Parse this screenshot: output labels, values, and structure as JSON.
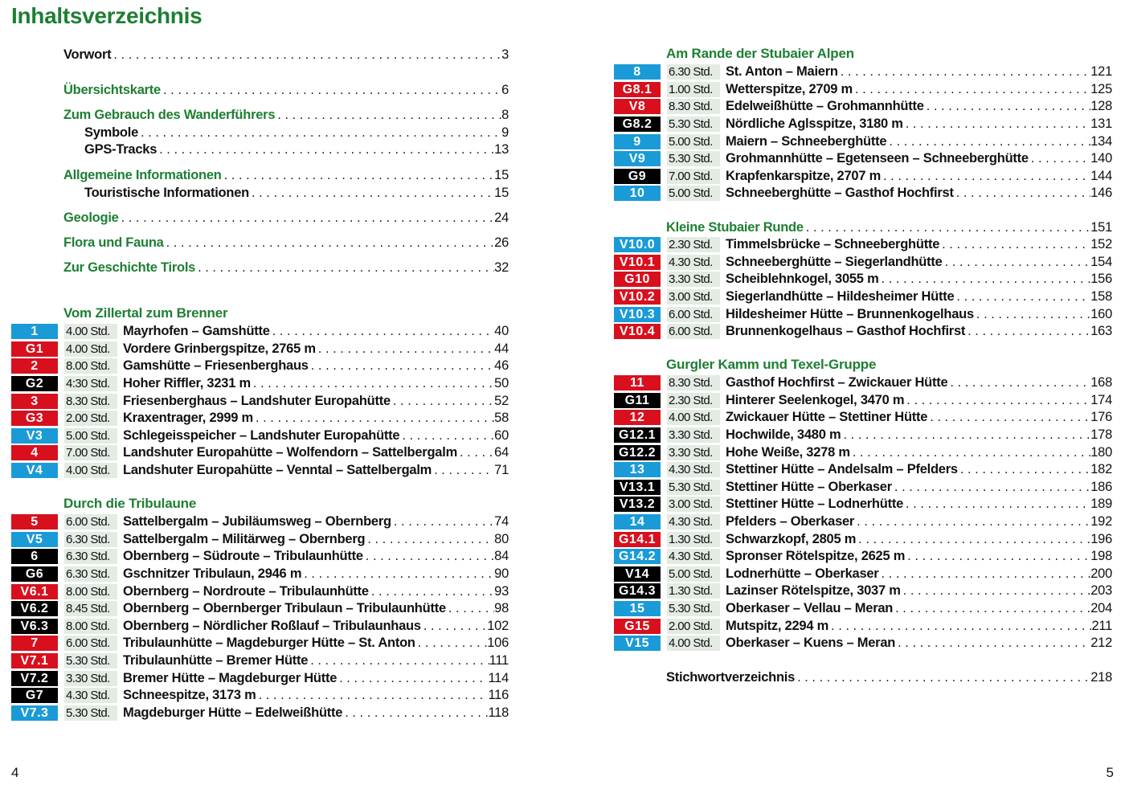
{
  "title": "Inhaltsverzeichnis",
  "colors": {
    "blue": "#1a9bd7",
    "red": "#d8101e",
    "black": "#000000",
    "green": "#1d7f33"
  },
  "front_matter": [
    {
      "label": "Vorwort",
      "page": "3",
      "style": "black",
      "indent": false
    },
    {
      "label": "Übersichtskarte",
      "page": "6",
      "style": "green",
      "indent": false
    },
    {
      "label": "Zum Gebrauch des Wanderführers",
      "page": "8",
      "style": "green",
      "indent": false
    },
    {
      "label": "Symbole",
      "page": "9",
      "style": "black",
      "indent": true
    },
    {
      "label": "GPS-Tracks",
      "page": "13",
      "style": "black",
      "indent": true
    },
    {
      "label": "Allgemeine Informationen",
      "page": "15",
      "style": "green",
      "indent": false
    },
    {
      "label": "Touristische Informationen",
      "page": "15",
      "style": "black",
      "indent": true
    },
    {
      "label": "Geologie",
      "page": "24",
      "style": "green",
      "indent": false
    },
    {
      "label": "Flora und Fauna",
      "page": "26",
      "style": "green",
      "indent": false
    },
    {
      "label": "Zur Geschichte Tirols",
      "page": "32",
      "style": "green",
      "indent": false
    }
  ],
  "sections": [
    {
      "heading": "Vom Zillertal zum Brenner",
      "page": "",
      "routes": [
        {
          "badge": "1",
          "color": "blue",
          "time": "4.00 Std.",
          "name": "Mayrhofen – Gamshütte",
          "page": "40"
        },
        {
          "badge": "G1",
          "color": "red",
          "time": "4.00 Std.",
          "name": "Vordere Grinbergspitze, 2765 m",
          "page": "44"
        },
        {
          "badge": "2",
          "color": "red",
          "time": "8.00 Std.",
          "name": "Gamshütte – Friesenberghaus",
          "page": "46"
        },
        {
          "badge": "G2",
          "color": "black",
          "time": "4:30 Std.",
          "name": "Hoher Riffler, 3231 m",
          "page": "50"
        },
        {
          "badge": "3",
          "color": "red",
          "time": "8.30 Std.",
          "name": "Friesenberghaus – Landshuter Europahütte",
          "page": "52"
        },
        {
          "badge": "G3",
          "color": "red",
          "time": "2.00 Std.",
          "name": "Kraxentrager, 2999 m",
          "page": "58"
        },
        {
          "badge": "V3",
          "color": "blue",
          "time": "5.00 Std.",
          "name": "Schlegeisspeicher – Landshuter Europahütte",
          "page": "60"
        },
        {
          "badge": "4",
          "color": "red",
          "time": "7.00 Std.",
          "name": "Landshuter Europahütte – Wolfendorn – Sattelbergalm",
          "page": "64"
        },
        {
          "badge": "V4",
          "color": "blue",
          "time": "4.00 Std.",
          "name": "Landshuter Europahütte – Venntal – Sattelbergalm",
          "page": "71"
        }
      ]
    },
    {
      "heading": "Durch die Tribulaune",
      "page": "",
      "routes": [
        {
          "badge": "5",
          "color": "red",
          "time": "6.00 Std.",
          "name": "Sattelbergalm – Jubiläumsweg – Obernberg",
          "page": "74"
        },
        {
          "badge": "V5",
          "color": "blue",
          "time": "6.30 Std.",
          "name": "Sattelbergalm – Militärweg – Obernberg",
          "page": "80"
        },
        {
          "badge": "6",
          "color": "black",
          "time": "6.30 Std.",
          "name": "Obernberg – Südroute – Tribulaunhütte",
          "page": "84"
        },
        {
          "badge": "G6",
          "color": "black",
          "time": "6.30 Std.",
          "name": "Gschnitzer Tribulaun, 2946 m",
          "page": "90"
        },
        {
          "badge": "V6.1",
          "color": "red",
          "time": "8.00 Std.",
          "name": "Obernberg – Nordroute – Tribulaunhütte",
          "page": "93"
        },
        {
          "badge": "V6.2",
          "color": "black",
          "time": "8.45 Std.",
          "name": "Obernberg – Obernberger Tribulaun – Tribulaunhütte",
          "page": "98"
        },
        {
          "badge": "V6.3",
          "color": "black",
          "time": "8.00 Std.",
          "name": "Obernberg – Nördlicher Roßlauf – Tribulaunhaus",
          "page": "102"
        },
        {
          "badge": "7",
          "color": "red",
          "time": "6.00 Std.",
          "name": "Tribulaunhütte – Magdeburger Hütte – St. Anton",
          "page": "106"
        },
        {
          "badge": "V7.1",
          "color": "red",
          "time": "5.30 Std.",
          "name": "Tribulaunhütte – Bremer Hütte",
          "page": "111"
        },
        {
          "badge": "V7.2",
          "color": "black",
          "time": "3.30 Std.",
          "name": "Bremer Hütte – Magdeburger Hütte",
          "page": "114"
        },
        {
          "badge": "G7",
          "color": "black",
          "time": "4.30 Std.",
          "name": "Schneespitze, 3173 m",
          "page": "116"
        },
        {
          "badge": "V7.3",
          "color": "blue",
          "time": "5.30 Std.",
          "name": "Magdeburger Hütte – Edelweißhütte",
          "page": "118"
        }
      ]
    },
    {
      "heading": "Am Rande der Stubaier Alpen",
      "page": "",
      "routes": [
        {
          "badge": "8",
          "color": "blue",
          "time": "6.30 Std.",
          "name": "St. Anton – Maiern",
          "page": "121"
        },
        {
          "badge": "G8.1",
          "color": "red",
          "time": "1.00 Std.",
          "name": "Wetterspitze, 2709 m",
          "page": "125"
        },
        {
          "badge": "V8",
          "color": "red",
          "time": "8.30 Std.",
          "name": "Edelweißhütte – Grohmannhütte",
          "page": "128"
        },
        {
          "badge": "G8.2",
          "color": "black",
          "time": "5.30 Std.",
          "name": "Nördliche Aglsspitze, 3180 m",
          "page": "131"
        },
        {
          "badge": "9",
          "color": "blue",
          "time": "5.00 Std.",
          "name": "Maiern – Schneeberghütte",
          "page": "134"
        },
        {
          "badge": "V9",
          "color": "blue",
          "time": "5.30 Std.",
          "name": "Grohmannhütte – Egetenseen – Schneeberghütte",
          "page": "140"
        },
        {
          "badge": "G9",
          "color": "black",
          "time": "7.00 Std.",
          "name": "Krapfenkarspitze, 2707 m",
          "page": "144"
        },
        {
          "badge": "10",
          "color": "blue",
          "time": "5.00 Std.",
          "name": "Schneeberghütte – Gasthof Hochfirst",
          "page": "146"
        }
      ]
    },
    {
      "heading": "Kleine Stubaier Runde",
      "page": "151",
      "routes": [
        {
          "badge": "V10.0",
          "color": "blue",
          "time": "2.30 Std.",
          "name": "Timmelsbrücke – Schneeberghütte",
          "page": "152"
        },
        {
          "badge": "V10.1",
          "color": "red",
          "time": "4.30 Std.",
          "name": "Schneeberghütte – Siegerlandhütte",
          "page": "154"
        },
        {
          "badge": "G10",
          "color": "red",
          "time": "3.30 Std.",
          "name": "Scheiblehnkogel, 3055 m",
          "page": "156"
        },
        {
          "badge": "V10.2",
          "color": "red",
          "time": "3.00 Std.",
          "name": "Siegerlandhütte – Hildesheimer Hütte",
          "page": "158"
        },
        {
          "badge": "V10.3",
          "color": "blue",
          "time": "6.00 Std.",
          "name": "Hildesheimer Hütte – Brunnenkogelhaus",
          "page": "160"
        },
        {
          "badge": "V10.4",
          "color": "red",
          "time": "6.00 Std.",
          "name": "Brunnenkogelhaus – Gasthof Hochfirst",
          "page": "163"
        }
      ]
    },
    {
      "heading": "Gurgler Kamm und Texel-Gruppe",
      "page": "",
      "routes": [
        {
          "badge": "11",
          "color": "red",
          "time": "8.30 Std.",
          "name": "Gasthof Hochfirst – Zwickauer Hütte",
          "page": "168"
        },
        {
          "badge": "G11",
          "color": "black",
          "time": "2.30 Std.",
          "name": "Hinterer Seelenkogel, 3470 m",
          "page": "174"
        },
        {
          "badge": "12",
          "color": "red",
          "time": "4.00 Std.",
          "name": "Zwickauer Hütte – Stettiner Hütte",
          "page": "176"
        },
        {
          "badge": "G12.1",
          "color": "black",
          "time": "3.30 Std.",
          "name": "Hochwilde, 3480 m",
          "page": "178"
        },
        {
          "badge": "G12.2",
          "color": "black",
          "time": "3.30 Std.",
          "name": "Hohe Weiße, 3278 m",
          "page": "180"
        },
        {
          "badge": "13",
          "color": "blue",
          "time": "4.30 Std.",
          "name": "Stettiner Hütte – Andelsalm – Pfelders",
          "page": "182"
        },
        {
          "badge": "V13.1",
          "color": "black",
          "time": "5.30 Std.",
          "name": "Stettiner Hütte – Oberkaser",
          "page": "186"
        },
        {
          "badge": "V13.2",
          "color": "black",
          "time": "3.00 Std.",
          "name": "Stettiner Hütte – Lodnerhütte",
          "page": "189"
        },
        {
          "badge": "14",
          "color": "blue",
          "time": "4.30 Std.",
          "name": "Pfelders – Oberkaser",
          "page": "192"
        },
        {
          "badge": "G14.1",
          "color": "red",
          "time": "1.30 Std.",
          "name": "Schwarzkopf, 2805 m",
          "page": "196"
        },
        {
          "badge": "G14.2",
          "color": "blue",
          "time": "4.30 Std.",
          "name": "Spronser Rötelspitze, 2625 m",
          "page": "198"
        },
        {
          "badge": "V14",
          "color": "black",
          "time": "5.00 Std.",
          "name": "Lodnerhütte – Oberkaser",
          "page": "200"
        },
        {
          "badge": "G14.3",
          "color": "black",
          "time": "1.30 Std.",
          "name": "Lazinser Rötelspitze, 3037 m",
          "page": "203"
        },
        {
          "badge": "15",
          "color": "blue",
          "time": "5.30 Std.",
          "name": "Oberkaser – Vellau – Meran",
          "page": "204"
        },
        {
          "badge": "G15",
          "color": "red",
          "time": "2.00 Std.",
          "name": "Mutspitz, 2294 m",
          "page": "211"
        },
        {
          "badge": "V15",
          "color": "blue",
          "time": "4.00 Std.",
          "name": "Oberkaser – Kuens – Meran",
          "page": "212"
        }
      ]
    }
  ],
  "index": {
    "label": "Stichwortverzeichnis",
    "page": "218"
  },
  "page_numbers": {
    "left": "4",
    "right": "5"
  }
}
